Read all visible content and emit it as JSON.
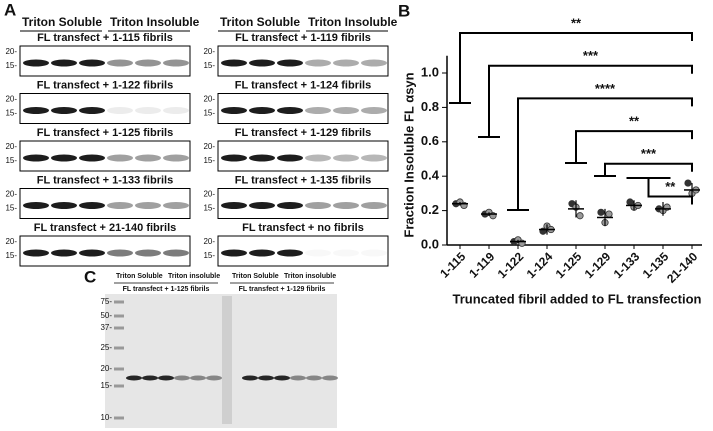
{
  "panel_a": {
    "letter": "A",
    "columns": [
      {
        "soluble": "Triton Soluble",
        "insoluble": "Triton Insoluble",
        "blots": [
          {
            "label": "FL transfect + 1-115 fibrils",
            "ticks": [
              "20-",
              "15-"
            ]
          },
          {
            "label": "FL transfect + 1-122 fibrils",
            "ticks": [
              "20-",
              "15-"
            ]
          },
          {
            "label": "FL transfect + 1-125 fibrils",
            "ticks": [
              "20-",
              "15-"
            ]
          },
          {
            "label": "FL transfect + 1-133 fibrils",
            "ticks": [
              "20-",
              "15-"
            ]
          },
          {
            "label": "FL transfect + 21-140 fibrils",
            "ticks": [
              "20-",
              "15-"
            ]
          }
        ]
      },
      {
        "soluble": "Triton Soluble",
        "insoluble": "Triton Insoluble",
        "blots": [
          {
            "label": "FL transfect + 1-119 fibrils",
            "ticks": [
              "20-",
              "15-"
            ]
          },
          {
            "label": "FL transfect + 1-124 fibrils",
            "ticks": [
              "20-",
              "15-"
            ]
          },
          {
            "label": "FL transfect + 1-129 fibrils",
            "ticks": [
              "20-",
              "15-"
            ]
          },
          {
            "label": "FL transfect + 1-135 fibrils",
            "ticks": [
              "20-",
              "15-"
            ]
          },
          {
            "label": "FL transfect + no fibrils",
            "ticks": [
              "20-",
              "15-"
            ]
          }
        ]
      }
    ]
  },
  "panel_b": {
    "letter": "B"
  },
  "chart_data": {
    "type": "scatter",
    "ylabel": "Fraction Insoluble FL αsyn",
    "xlabel": "Truncated fibril added to FL transfection",
    "categories": [
      "1-115",
      "1-119",
      "1-122",
      "1-124",
      "1-125",
      "1-129",
      "1-133",
      "1-135",
      "21-140"
    ],
    "values": [
      0.24,
      0.18,
      0.02,
      0.09,
      0.21,
      0.16,
      0.23,
      0.21,
      0.32
    ],
    "errors": [
      0.01,
      0.01,
      0.01,
      0.03,
      0.05,
      0.05,
      0.03,
      0.04,
      0.04
    ],
    "points": [
      [
        0.24,
        0.25,
        0.23
      ],
      [
        0.18,
        0.19,
        0.17
      ],
      [
        0.02,
        0.03,
        0.01
      ],
      [
        0.08,
        0.11,
        0.09
      ],
      [
        0.24,
        0.22,
        0.17
      ],
      [
        0.19,
        0.13,
        0.18
      ],
      [
        0.25,
        0.22,
        0.23
      ],
      [
        0.21,
        0.2,
        0.22
      ],
      [
        0.36,
        0.3,
        0.32
      ]
    ],
    "ylim": [
      0,
      1.1
    ],
    "yticks": [
      {
        "value": 0,
        "label": "0.0"
      },
      0.2,
      0.4,
      0.6,
      0.8,
      {
        "value": 1,
        "label": "1.0"
      }
    ],
    "annotations": [
      {
        "text": "**",
        "from": "1-115",
        "to": "21-140"
      },
      {
        "text": "***",
        "from": "1-119",
        "to": "21-140"
      },
      {
        "text": "****",
        "from": "1-122",
        "to": "21-140"
      },
      {
        "text": "**",
        "from": "1-125",
        "to": "21-140"
      },
      {
        "text": "***",
        "from": "1-129",
        "to": "21-140"
      },
      {
        "text": "**",
        "from": "1-133",
        "to": "21-140"
      }
    ]
  },
  "panel_c": {
    "letter": "C",
    "ladder": [
      "75-",
      "50-",
      "37-",
      "25-",
      "20-",
      "15-",
      "10-"
    ],
    "groups": [
      {
        "soluble": "Triton Soluble",
        "insoluble": "Triton insoluble",
        "label": "FL transfect + 1-125 fibrils"
      },
      {
        "soluble": "Triton Soluble",
        "insoluble": "Triton insoluble",
        "label": "FL transfect + 1-129 fibrils"
      }
    ]
  }
}
